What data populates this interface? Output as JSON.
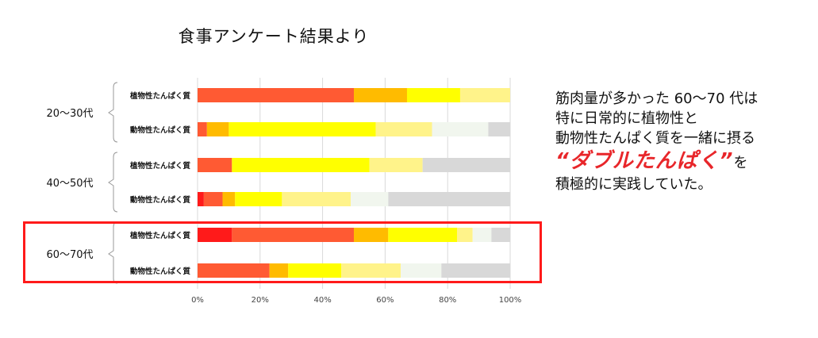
{
  "title": "食事アンケート結果より",
  "note": {
    "line1": "筋肉量が多かった 60～70 代は",
    "line2": "特に日常的に植物性と",
    "line3": "動物性たんぱく質を一緒に摂る",
    "emphasis": "“ダブルたんぱく”",
    "particle": "を",
    "line5": "積極的に実践していた。"
  },
  "colors": {
    "segments": [
      "#ff1a1a",
      "#ff5a33",
      "#ffbb00",
      "#ffff00",
      "#fff38a",
      "#f1f6ee",
      "#d8d8d8"
    ],
    "highlight": "#ff1a1a"
  },
  "chart_data": {
    "type": "bar",
    "orientation": "horizontal",
    "stacked": true,
    "xlim": [
      0,
      100
    ],
    "ticks": [
      "0%",
      "20%",
      "40%",
      "60%",
      "80%",
      "100%"
    ],
    "grid": true,
    "groups": [
      {
        "label": "20～30代",
        "bars": [
          {
            "label": "植物性たんぱく質",
            "segments": [
              0,
              50,
              17,
              17,
              16,
              0,
              0
            ]
          },
          {
            "label": "動物性たんぱく質",
            "segments": [
              0,
              3,
              7,
              47,
              18,
              18,
              7
            ]
          }
        ]
      },
      {
        "label": "40～50代",
        "bars": [
          {
            "label": "植物性たんぱく質",
            "segments": [
              0,
              11,
              0,
              44,
              17,
              0,
              28
            ]
          },
          {
            "label": "動物性たんぱく質",
            "segments": [
              2,
              6,
              4,
              15,
              22,
              12,
              39
            ]
          }
        ]
      },
      {
        "label": "60～70代",
        "bars": [
          {
            "label": "植物性たんぱく質",
            "segments": [
              11,
              39,
              11,
              22,
              5,
              6,
              6
            ]
          },
          {
            "label": "動物性たんぱく質",
            "segments": [
              0,
              23,
              6,
              17,
              19,
              13,
              22
            ]
          }
        ]
      }
    ]
  }
}
